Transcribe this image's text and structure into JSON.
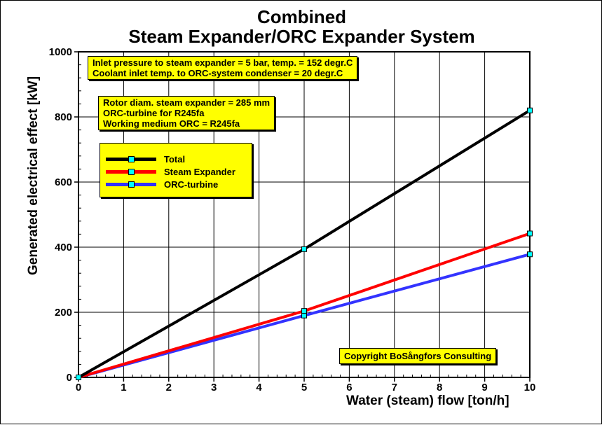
{
  "title": "Combined",
  "subtitle": "Steam Expander/ORC Expander System",
  "info_box_1": [
    "Inlet pressure to steam expander = 5 bar, temp. = 152 degr.C",
    "Coolant inlet temp. to ORC-system condenser = 20 degr.C"
  ],
  "info_box_2": [
    "Rotor diam. steam expander = 285 mm",
    "ORC-turbine for R245fa",
    "Working medium ORC = R245fa"
  ],
  "copyright": "Copyright BoSångfors Consulting",
  "colors": {
    "total": "#000000",
    "steam": "#ff0000",
    "orc": "#3333ff",
    "marker": "#00ffff",
    "box_bg": "#ffff00"
  },
  "chart_data": {
    "type": "line",
    "title": "Combined",
    "subtitle": "Steam Expander/ORC Expander System",
    "xlabel": "Water (steam) flow  [ton/h]",
    "ylabel": "Generated electrical effect [kW]",
    "xlim": [
      0,
      10
    ],
    "ylim": [
      0,
      1000
    ],
    "xticks": [
      "0",
      "1",
      "2",
      "3",
      "4",
      "5",
      "6",
      "7",
      "8",
      "9",
      "10"
    ],
    "yticks": [
      "0",
      "200",
      "400",
      "600",
      "800",
      "1000"
    ],
    "grid": true,
    "legend_position": "upper-left",
    "series": [
      {
        "name": "Total",
        "color": "#000000",
        "x": [
          0,
          5,
          10
        ],
        "y": [
          0,
          394,
          820
        ]
      },
      {
        "name": "Steam Expander",
        "color": "#ff0000",
        "x": [
          0,
          5,
          10
        ],
        "y": [
          0,
          204,
          442
        ]
      },
      {
        "name": "ORC-turbine",
        "color": "#3333ff",
        "x": [
          0,
          5,
          10
        ],
        "y": [
          0,
          190,
          378
        ]
      }
    ]
  }
}
